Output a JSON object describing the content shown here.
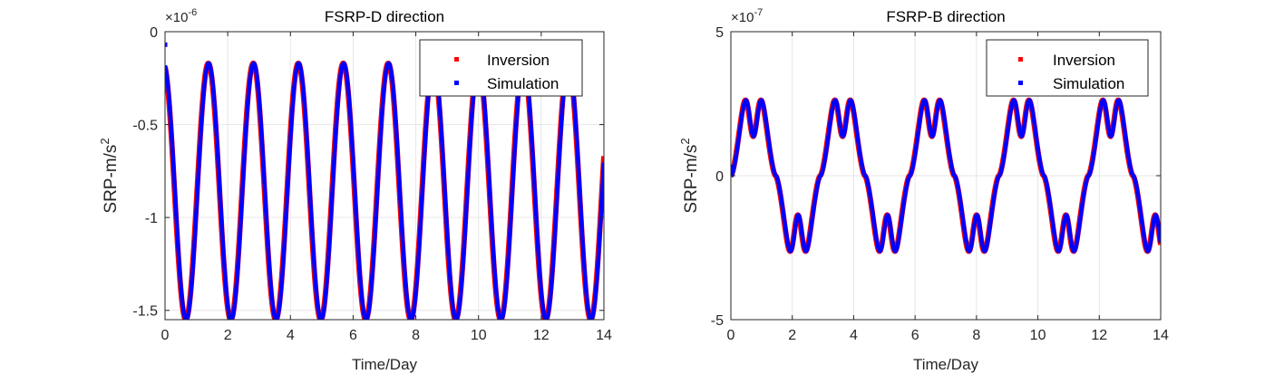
{
  "chart_data": [
    {
      "type": "line",
      "title": "FSRP-D direction",
      "xlabel": "Time/Day",
      "ylabel": "SRP-m/s",
      "ylabel_sup": "2",
      "exponent_label": "×10",
      "exponent_power": "-6",
      "xlim": [
        0,
        14
      ],
      "ylim": [
        -1.55,
        0
      ],
      "xticks": [
        0,
        2,
        4,
        6,
        8,
        10,
        12,
        14
      ],
      "xtick_labels": [
        "0",
        "2",
        "4",
        "6",
        "8",
        "10",
        "12",
        "14"
      ],
      "yticks": [
        0,
        -0.5,
        -1,
        -1.5
      ],
      "ytick_labels": [
        "0",
        "-0.5",
        "-1",
        "-1.5"
      ],
      "grid": true,
      "legend_position": "top-right",
      "signal": {
        "kind": "sinusoid",
        "mean": -0.86,
        "amplitude": 0.69,
        "period": 1.435,
        "peak_at": 1.38
      },
      "series": [
        {
          "name": "Inversion",
          "color": "#ff0000",
          "style": "dots",
          "start_value": -0.21
        },
        {
          "name": "Simulation",
          "color": "#0000ff",
          "style": "dots",
          "start_value": -0.07
        }
      ]
    },
    {
      "type": "line",
      "title": "FSRP-B direction",
      "xlabel": "Time/Day",
      "ylabel": "SRP-m/s",
      "ylabel_sup": "2",
      "exponent_label": "×10",
      "exponent_power": "-7",
      "xlim": [
        0,
        14
      ],
      "ylim": [
        -5,
        5
      ],
      "xticks": [
        0,
        2,
        4,
        6,
        8,
        10,
        12,
        14
      ],
      "xtick_labels": [
        "0",
        "2",
        "4",
        "6",
        "8",
        "10",
        "12",
        "14"
      ],
      "yticks": [
        5,
        0,
        -5
      ],
      "ytick_labels": [
        "5",
        "0",
        "-5"
      ],
      "grid": true,
      "legend_position": "top-right",
      "signal": {
        "kind": "rectified-double-hump",
        "amplitude": 3.9,
        "half_period": 1.455,
        "dip_depth": 0.65
      },
      "series": [
        {
          "name": "Inversion",
          "color": "#ff0000",
          "style": "dots",
          "start_value": 0.1
        },
        {
          "name": "Simulation",
          "color": "#0000ff",
          "style": "dots",
          "start_value": 0.3
        }
      ]
    }
  ]
}
